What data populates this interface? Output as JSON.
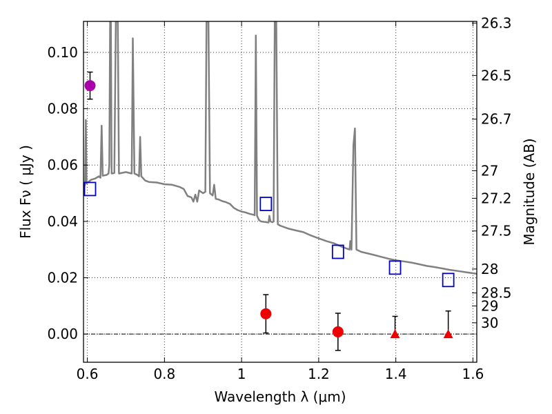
{
  "chart_data": {
    "type": "scatter",
    "title": "",
    "xlabel": "Wavelength  λ (μm)",
    "ylabel": "Flux  Fν  ( μJy )",
    "ylabel_right": "Magnitude (AB)",
    "xlim": [
      0.59,
      1.61
    ],
    "ylim": [
      -0.01,
      0.111
    ],
    "x_ticks": [
      {
        "value": 0.6,
        "label": "0.6"
      },
      {
        "value": 0.8,
        "label": "0.8"
      },
      {
        "value": 1.0,
        "label": "1"
      },
      {
        "value": 1.2,
        "label": "1.2"
      },
      {
        "value": 1.4,
        "label": "1.4"
      },
      {
        "value": 1.6,
        "label": "1.6"
      }
    ],
    "y_ticks": [
      {
        "value": 0.0,
        "label": "0.00"
      },
      {
        "value": 0.02,
        "label": "0.02"
      },
      {
        "value": 0.04,
        "label": "0.04"
      },
      {
        "value": 0.06,
        "label": "0.06"
      },
      {
        "value": 0.08,
        "label": "0.08"
      },
      {
        "value": 0.1,
        "label": "0.10"
      }
    ],
    "right_ticks": [
      {
        "mag": "26.3",
        "flux": 0.1104
      },
      {
        "mag": "26.5",
        "flux": 0.0918
      },
      {
        "mag": "26.7",
        "flux": 0.0763
      },
      {
        "mag": "27",
        "flux": 0.058
      },
      {
        "mag": "27.2",
        "flux": 0.0482
      },
      {
        "mag": "27.5",
        "flux": 0.0366
      },
      {
        "mag": "28",
        "flux": 0.0231
      },
      {
        "mag": "28.5",
        "flux": 0.0146
      },
      {
        "mag": "29",
        "flux": 0.01
      },
      {
        "mag": "30",
        "flux": 0.004
      }
    ],
    "grid": true,
    "model_spectrum": {
      "color": "#808080",
      "points": [
        [
          0.59,
          0.052
        ],
        [
          0.594,
          0.053
        ],
        [
          0.596,
          0.076
        ],
        [
          0.598,
          0.0535
        ],
        [
          0.61,
          0.0548
        ],
        [
          0.62,
          0.0552
        ],
        [
          0.63,
          0.056
        ],
        [
          0.634,
          0.0555
        ],
        [
          0.637,
          0.074
        ],
        [
          0.64,
          0.0562
        ],
        [
          0.65,
          0.0565
        ],
        [
          0.655,
          0.057
        ],
        [
          0.657,
          0.06
        ],
        [
          0.659,
          0.111
        ],
        [
          0.661,
          0.111
        ],
        [
          0.663,
          0.057
        ],
        [
          0.67,
          0.0572
        ],
        [
          0.674,
          0.111
        ],
        [
          0.679,
          0.111
        ],
        [
          0.682,
          0.057
        ],
        [
          0.7,
          0.0575
        ],
        [
          0.715,
          0.057
        ],
        [
          0.718,
          0.105
        ],
        [
          0.722,
          0.057
        ],
        [
          0.73,
          0.0565
        ],
        [
          0.734,
          0.056
        ],
        [
          0.737,
          0.07
        ],
        [
          0.74,
          0.056
        ],
        [
          0.75,
          0.0545
        ],
        [
          0.76,
          0.054
        ],
        [
          0.78,
          0.0538
        ],
        [
          0.8,
          0.0532
        ],
        [
          0.82,
          0.053
        ],
        [
          0.84,
          0.0522
        ],
        [
          0.85,
          0.0515
        ],
        [
          0.86,
          0.049
        ],
        [
          0.87,
          0.0485
        ],
        [
          0.875,
          0.047
        ],
        [
          0.88,
          0.0495
        ],
        [
          0.885,
          0.047
        ],
        [
          0.89,
          0.051
        ],
        [
          0.9,
          0.05
        ],
        [
          0.906,
          0.0505
        ],
        [
          0.909,
          0.111
        ],
        [
          0.914,
          0.111
        ],
        [
          0.918,
          0.05
        ],
        [
          0.925,
          0.0492
        ],
        [
          0.929,
          0.053
        ],
        [
          0.933,
          0.048
        ],
        [
          0.94,
          0.0478
        ],
        [
          0.95,
          0.0472
        ],
        [
          0.96,
          0.0468
        ],
        [
          0.97,
          0.0462
        ],
        [
          0.98,
          0.0448
        ],
        [
          0.99,
          0.044
        ],
        [
          1.0,
          0.0435
        ],
        [
          1.01,
          0.0432
        ],
        [
          1.02,
          0.0427
        ],
        [
          1.03,
          0.0424
        ],
        [
          1.034,
          0.0422
        ],
        [
          1.037,
          0.106
        ],
        [
          1.04,
          0.042
        ],
        [
          1.045,
          0.0405
        ],
        [
          1.05,
          0.04
        ],
        [
          1.06,
          0.0398
        ],
        [
          1.07,
          0.0396
        ],
        [
          1.072,
          0.042
        ],
        [
          1.075,
          0.04
        ],
        [
          1.08,
          0.0397
        ],
        [
          1.083,
          0.04
        ],
        [
          1.086,
          0.111
        ],
        [
          1.09,
          0.111
        ],
        [
          1.094,
          0.039
        ],
        [
          1.1,
          0.0385
        ],
        [
          1.12,
          0.0375
        ],
        [
          1.14,
          0.0368
        ],
        [
          1.16,
          0.0362
        ],
        [
          1.18,
          0.035
        ],
        [
          1.2,
          0.034
        ],
        [
          1.22,
          0.033
        ],
        [
          1.24,
          0.0322
        ],
        [
          1.26,
          0.031
        ],
        [
          1.27,
          0.0305
        ],
        [
          1.28,
          0.03
        ],
        [
          1.282,
          0.033
        ],
        [
          1.285,
          0.03
        ],
        [
          1.29,
          0.067
        ],
        [
          1.294,
          0.073
        ],
        [
          1.298,
          0.03
        ],
        [
          1.31,
          0.0292
        ],
        [
          1.34,
          0.0282
        ],
        [
          1.36,
          0.0275
        ],
        [
          1.38,
          0.0268
        ],
        [
          1.4,
          0.0262
        ],
        [
          1.42,
          0.0258
        ],
        [
          1.44,
          0.0254
        ],
        [
          1.46,
          0.0248
        ],
        [
          1.48,
          0.0242
        ],
        [
          1.5,
          0.0238
        ],
        [
          1.52,
          0.0233
        ],
        [
          1.54,
          0.0228
        ],
        [
          1.56,
          0.0224
        ],
        [
          1.58,
          0.022
        ],
        [
          1.6,
          0.0216
        ],
        [
          1.61,
          0.0214
        ]
      ]
    },
    "model_photometry": {
      "marker": "square",
      "color": "#0000cc",
      "points": [
        {
          "x": 0.607,
          "y": 0.0515
        },
        {
          "x": 1.063,
          "y": 0.0462
        },
        {
          "x": 1.25,
          "y": 0.0292
        },
        {
          "x": 1.398,
          "y": 0.0236
        },
        {
          "x": 1.536,
          "y": 0.0192
        }
      ]
    },
    "observed": [
      {
        "x": 0.607,
        "y": 0.0882,
        "err": 0.0048,
        "marker": "circle",
        "color": "#aa00aa"
      },
      {
        "x": 1.063,
        "y": 0.0072,
        "err": 0.0068,
        "marker": "circle",
        "color": "#ee0000"
      },
      {
        "x": 1.25,
        "y": 0.0008,
        "err": 0.0066,
        "marker": "circle",
        "color": "#ee0000"
      },
      {
        "x": 1.398,
        "y": 0.0,
        "err_up": 0.0063,
        "marker": "triangle",
        "color": "#ee0000"
      },
      {
        "x": 1.536,
        "y": 0.0,
        "err_up": 0.0082,
        "marker": "triangle",
        "color": "#ee0000"
      }
    ],
    "zero_line": {
      "y": 0.0
    }
  }
}
